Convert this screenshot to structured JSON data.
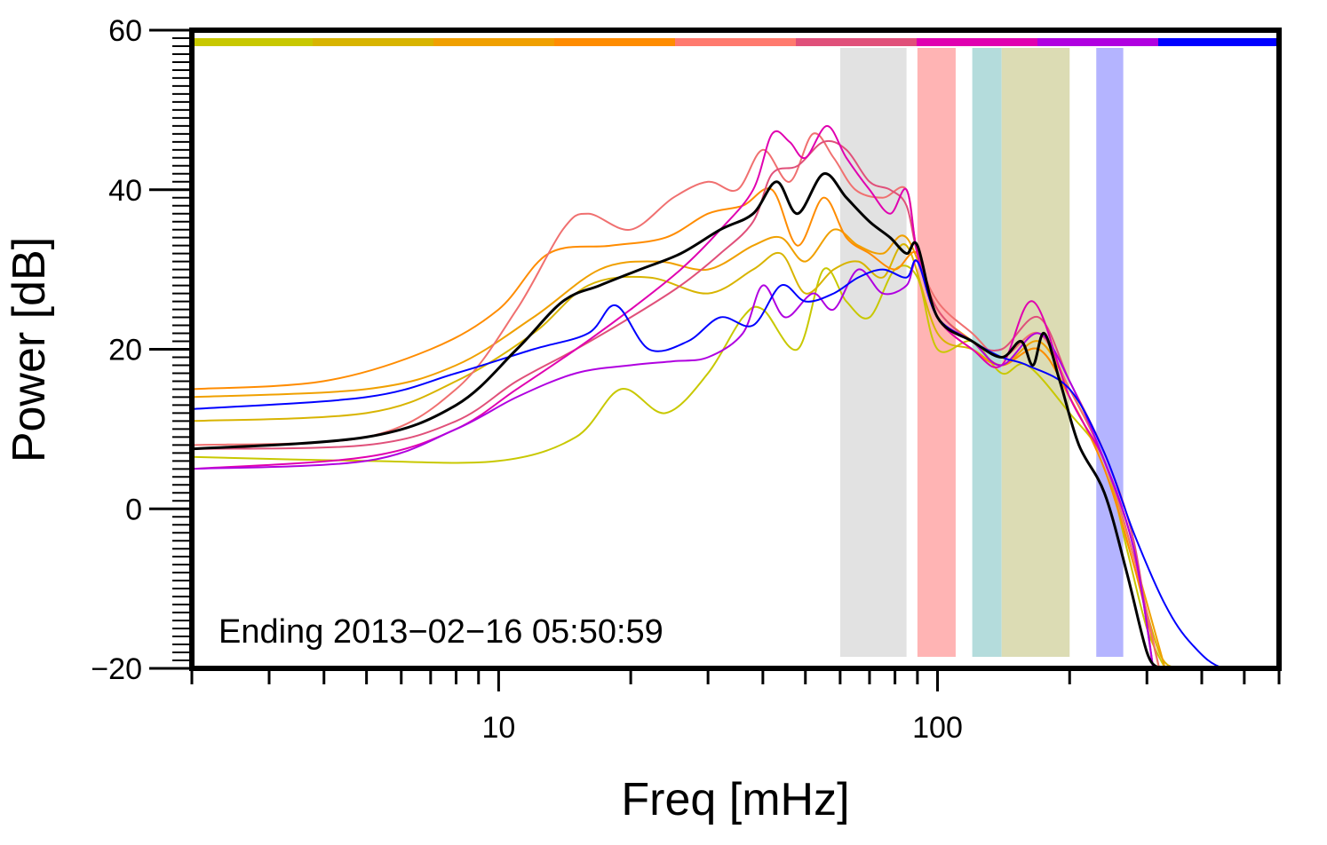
{
  "chart_data": {
    "type": "line",
    "xlabel": "Freq [mHz]",
    "ylabel": "Power [dB]",
    "x_scale": "log",
    "xlim": [
      2,
      600
    ],
    "ylim": [
      -20,
      60
    ],
    "x_tick_labels": [
      "10",
      "100"
    ],
    "y_tick_labels": [
      "60",
      "40",
      "20",
      "0",
      "−20"
    ],
    "grid": false,
    "annotation": "Ending 2013−02−16 05:50:59",
    "legend_colors": [
      "#c8c800",
      "#d8b400",
      "#f0a000",
      "#ff8c00",
      "#ff7a6e",
      "#e0507a",
      "#e000b0",
      "#b000e0",
      "#0000ff"
    ],
    "bands": [
      {
        "from": 60,
        "to": 85,
        "color": "#e2e2e2"
      },
      {
        "from": 90,
        "to": 110,
        "color": "#ffb4b4"
      },
      {
        "from": 120,
        "to": 140,
        "color": "#b4dcdc"
      },
      {
        "from": 140,
        "to": 200,
        "color": "#dcdcb4"
      },
      {
        "from": 230,
        "to": 265,
        "color": "#b4b4ff"
      }
    ],
    "series": [
      {
        "color": "#000000",
        "width": 3,
        "x": [
          2,
          5,
          8,
          11,
          14,
          17,
          21,
          26,
          32,
          38,
          43,
          48,
          55,
          62,
          70,
          78,
          85,
          90,
          100,
          120,
          140,
          155,
          165,
          175,
          190,
          210,
          240,
          270,
          300,
          320
        ],
        "y": [
          7.5,
          9,
          13,
          20,
          26,
          28,
          30,
          32,
          35,
          37,
          41,
          37,
          42,
          39,
          36,
          34,
          32,
          33,
          24,
          21,
          19,
          21,
          18,
          22,
          16,
          8,
          2,
          -8,
          -18,
          -21
        ]
      },
      {
        "color": "#c8c800",
        "width": 2,
        "x": [
          2,
          5,
          10,
          15,
          19,
          24,
          30,
          36,
          40,
          48,
          55,
          62,
          70,
          80,
          90,
          100,
          120,
          140,
          160,
          200,
          240,
          270,
          300,
          330
        ],
        "y": [
          6.5,
          6,
          6,
          9,
          15,
          12,
          17,
          24,
          25,
          20,
          30,
          26,
          24,
          30,
          29,
          20,
          21,
          17,
          18,
          12,
          6,
          -5,
          -15,
          -21
        ]
      },
      {
        "color": "#d8b400",
        "width": 2,
        "x": [
          2,
          5,
          8,
          12,
          16,
          22,
          30,
          38,
          44,
          50,
          58,
          66,
          75,
          85,
          100,
          120,
          140,
          170,
          200,
          240,
          280,
          320,
          350
        ],
        "y": [
          11,
          12,
          16,
          22,
          28,
          29,
          27,
          30,
          32,
          27,
          30,
          31,
          29,
          33,
          22,
          20,
          18,
          20,
          14,
          5,
          -7,
          -18,
          -21
        ]
      },
      {
        "color": "#f0a000",
        "width": 2,
        "x": [
          2,
          5,
          8,
          12,
          17,
          23,
          30,
          38,
          44,
          50,
          58,
          66,
          75,
          85,
          100,
          120,
          140,
          170,
          200,
          240,
          280,
          330
        ],
        "y": [
          14,
          15,
          18,
          24,
          30,
          31,
          30,
          33,
          34,
          31,
          35,
          33,
          32,
          34,
          25,
          21,
          18,
          21,
          15,
          6,
          -6,
          -21
        ]
      },
      {
        "color": "#ff8c00",
        "width": 2,
        "x": [
          2,
          4,
          7,
          10,
          13,
          18,
          24,
          30,
          36,
          42,
          48,
          55,
          62,
          70,
          80,
          90,
          100,
          120,
          140,
          170,
          200,
          240,
          280,
          320
        ],
        "y": [
          15,
          16,
          20,
          25,
          32,
          33,
          34,
          37,
          38,
          40,
          33,
          39,
          34,
          32,
          30,
          32,
          24,
          20,
          18,
          20,
          14,
          5,
          -7,
          -20
        ]
      },
      {
        "color": "#f07070",
        "width": 2,
        "x": [
          2,
          5,
          8,
          11,
          14,
          16,
          20,
          25,
          30,
          35,
          40,
          46,
          52,
          58,
          65,
          75,
          85,
          90,
          100,
          120,
          140,
          170,
          200,
          240,
          280,
          320
        ],
        "y": [
          8,
          9,
          15,
          25,
          35,
          37,
          35,
          39,
          41,
          40,
          45,
          41,
          47,
          44,
          40,
          39,
          40,
          32,
          26,
          22,
          19,
          22,
          15,
          6,
          -6,
          -20
        ]
      },
      {
        "color": "#e0507a",
        "width": 2,
        "x": [
          2,
          5,
          8,
          11,
          15,
          20,
          26,
          32,
          38,
          42,
          48,
          55,
          62,
          70,
          78,
          85,
          90,
          100,
          120,
          140,
          170,
          200,
          240,
          280,
          310
        ],
        "y": [
          7.5,
          8,
          11,
          16,
          20,
          24,
          28,
          32,
          36,
          42,
          43,
          46,
          45,
          41,
          40,
          38,
          32,
          25,
          21,
          20,
          24,
          16,
          7,
          -4,
          -20
        ]
      },
      {
        "color": "#e000b0",
        "width": 2,
        "x": [
          2,
          5,
          8,
          11,
          15,
          20,
          26,
          32,
          38,
          42,
          46,
          50,
          56,
          62,
          70,
          78,
          85,
          90,
          100,
          120,
          140,
          165,
          200,
          240,
          280,
          310
        ],
        "y": [
          5,
          6.5,
          10,
          15,
          20,
          25,
          30,
          35,
          40,
          47,
          46,
          44,
          48,
          44,
          40,
          37,
          40,
          32,
          24,
          20,
          18,
          26,
          14,
          6,
          -5,
          -20
        ]
      },
      {
        "color": "#b000e0",
        "width": 2,
        "x": [
          2,
          5,
          8,
          11,
          15,
          20,
          25,
          30,
          36,
          40,
          45,
          52,
          58,
          66,
          75,
          85,
          90,
          100,
          120,
          140,
          170,
          200,
          240,
          280,
          310
        ],
        "y": [
          5,
          6,
          10,
          14,
          17,
          18,
          18.5,
          19,
          22,
          28,
          24,
          27,
          25,
          30,
          27,
          28,
          31,
          24,
          21,
          18,
          22,
          16,
          6,
          -5,
          -20
        ]
      },
      {
        "color": "#0000ff",
        "width": 2,
        "x": [
          2,
          5,
          8,
          12,
          16,
          18.5,
          22,
          27,
          32,
          38,
          44,
          50,
          58,
          66,
          75,
          85,
          90,
          100,
          120,
          140,
          160,
          200,
          240,
          280,
          330,
          380,
          450,
          600
        ],
        "y": [
          12.5,
          14,
          17,
          20,
          22,
          25.5,
          20,
          21,
          24,
          23,
          28,
          26,
          27,
          29,
          30,
          29,
          31,
          24,
          21,
          19,
          18,
          15,
          7,
          -3,
          -12,
          -17,
          -20,
          -20
        ]
      }
    ]
  }
}
